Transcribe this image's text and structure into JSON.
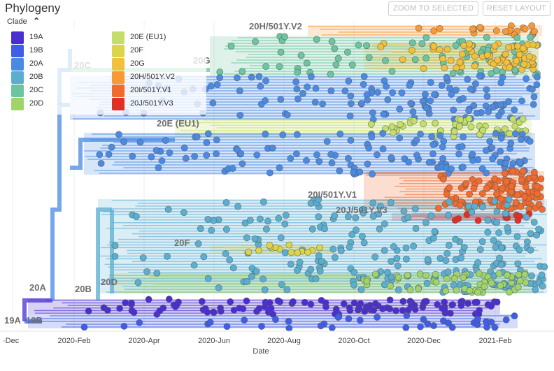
{
  "panel": {
    "title": "Phylogeny",
    "zoom_button": "ZOOM TO SELECTED",
    "reset_button": "RESET LAYOUT"
  },
  "legend": {
    "title": "Clade",
    "items": [
      {
        "label": "19A",
        "color": "#4a2fd0"
      },
      {
        "label": "19B",
        "color": "#3f5de6"
      },
      {
        "label": "20A",
        "color": "#4a8ae3"
      },
      {
        "label": "20B",
        "color": "#5aaed0"
      },
      {
        "label": "20C",
        "color": "#6cc4a0"
      },
      {
        "label": "20D",
        "color": "#9fd46d"
      },
      {
        "label": "20E (EU1)",
        "color": "#c4de6a"
      },
      {
        "label": "20F",
        "color": "#dcd449"
      },
      {
        "label": "20G",
        "color": "#f1c13c"
      },
      {
        "label": "20H/501Y.V2",
        "color": "#f79a36"
      },
      {
        "label": "20I/501Y.V1",
        "color": "#f26a2c"
      },
      {
        "label": "20J/501Y.V3",
        "color": "#e02f25"
      }
    ]
  },
  "tree_labels": [
    "20H/501Y.V2",
    "20G",
    "20C",
    "20E (EU1)",
    "20I/501Y.V1",
    "20J/501Y.V3",
    "20F",
    "20D",
    "20B",
    "20A",
    "19A",
    "19B"
  ],
  "axis": {
    "title": "Date",
    "ticks": [
      "·Dec",
      "2020-Feb",
      "2020-Apr",
      "2020-Jun",
      "2020-Aug",
      "2020-Oct",
      "2020-Dec",
      "2021-Feb"
    ]
  }
}
